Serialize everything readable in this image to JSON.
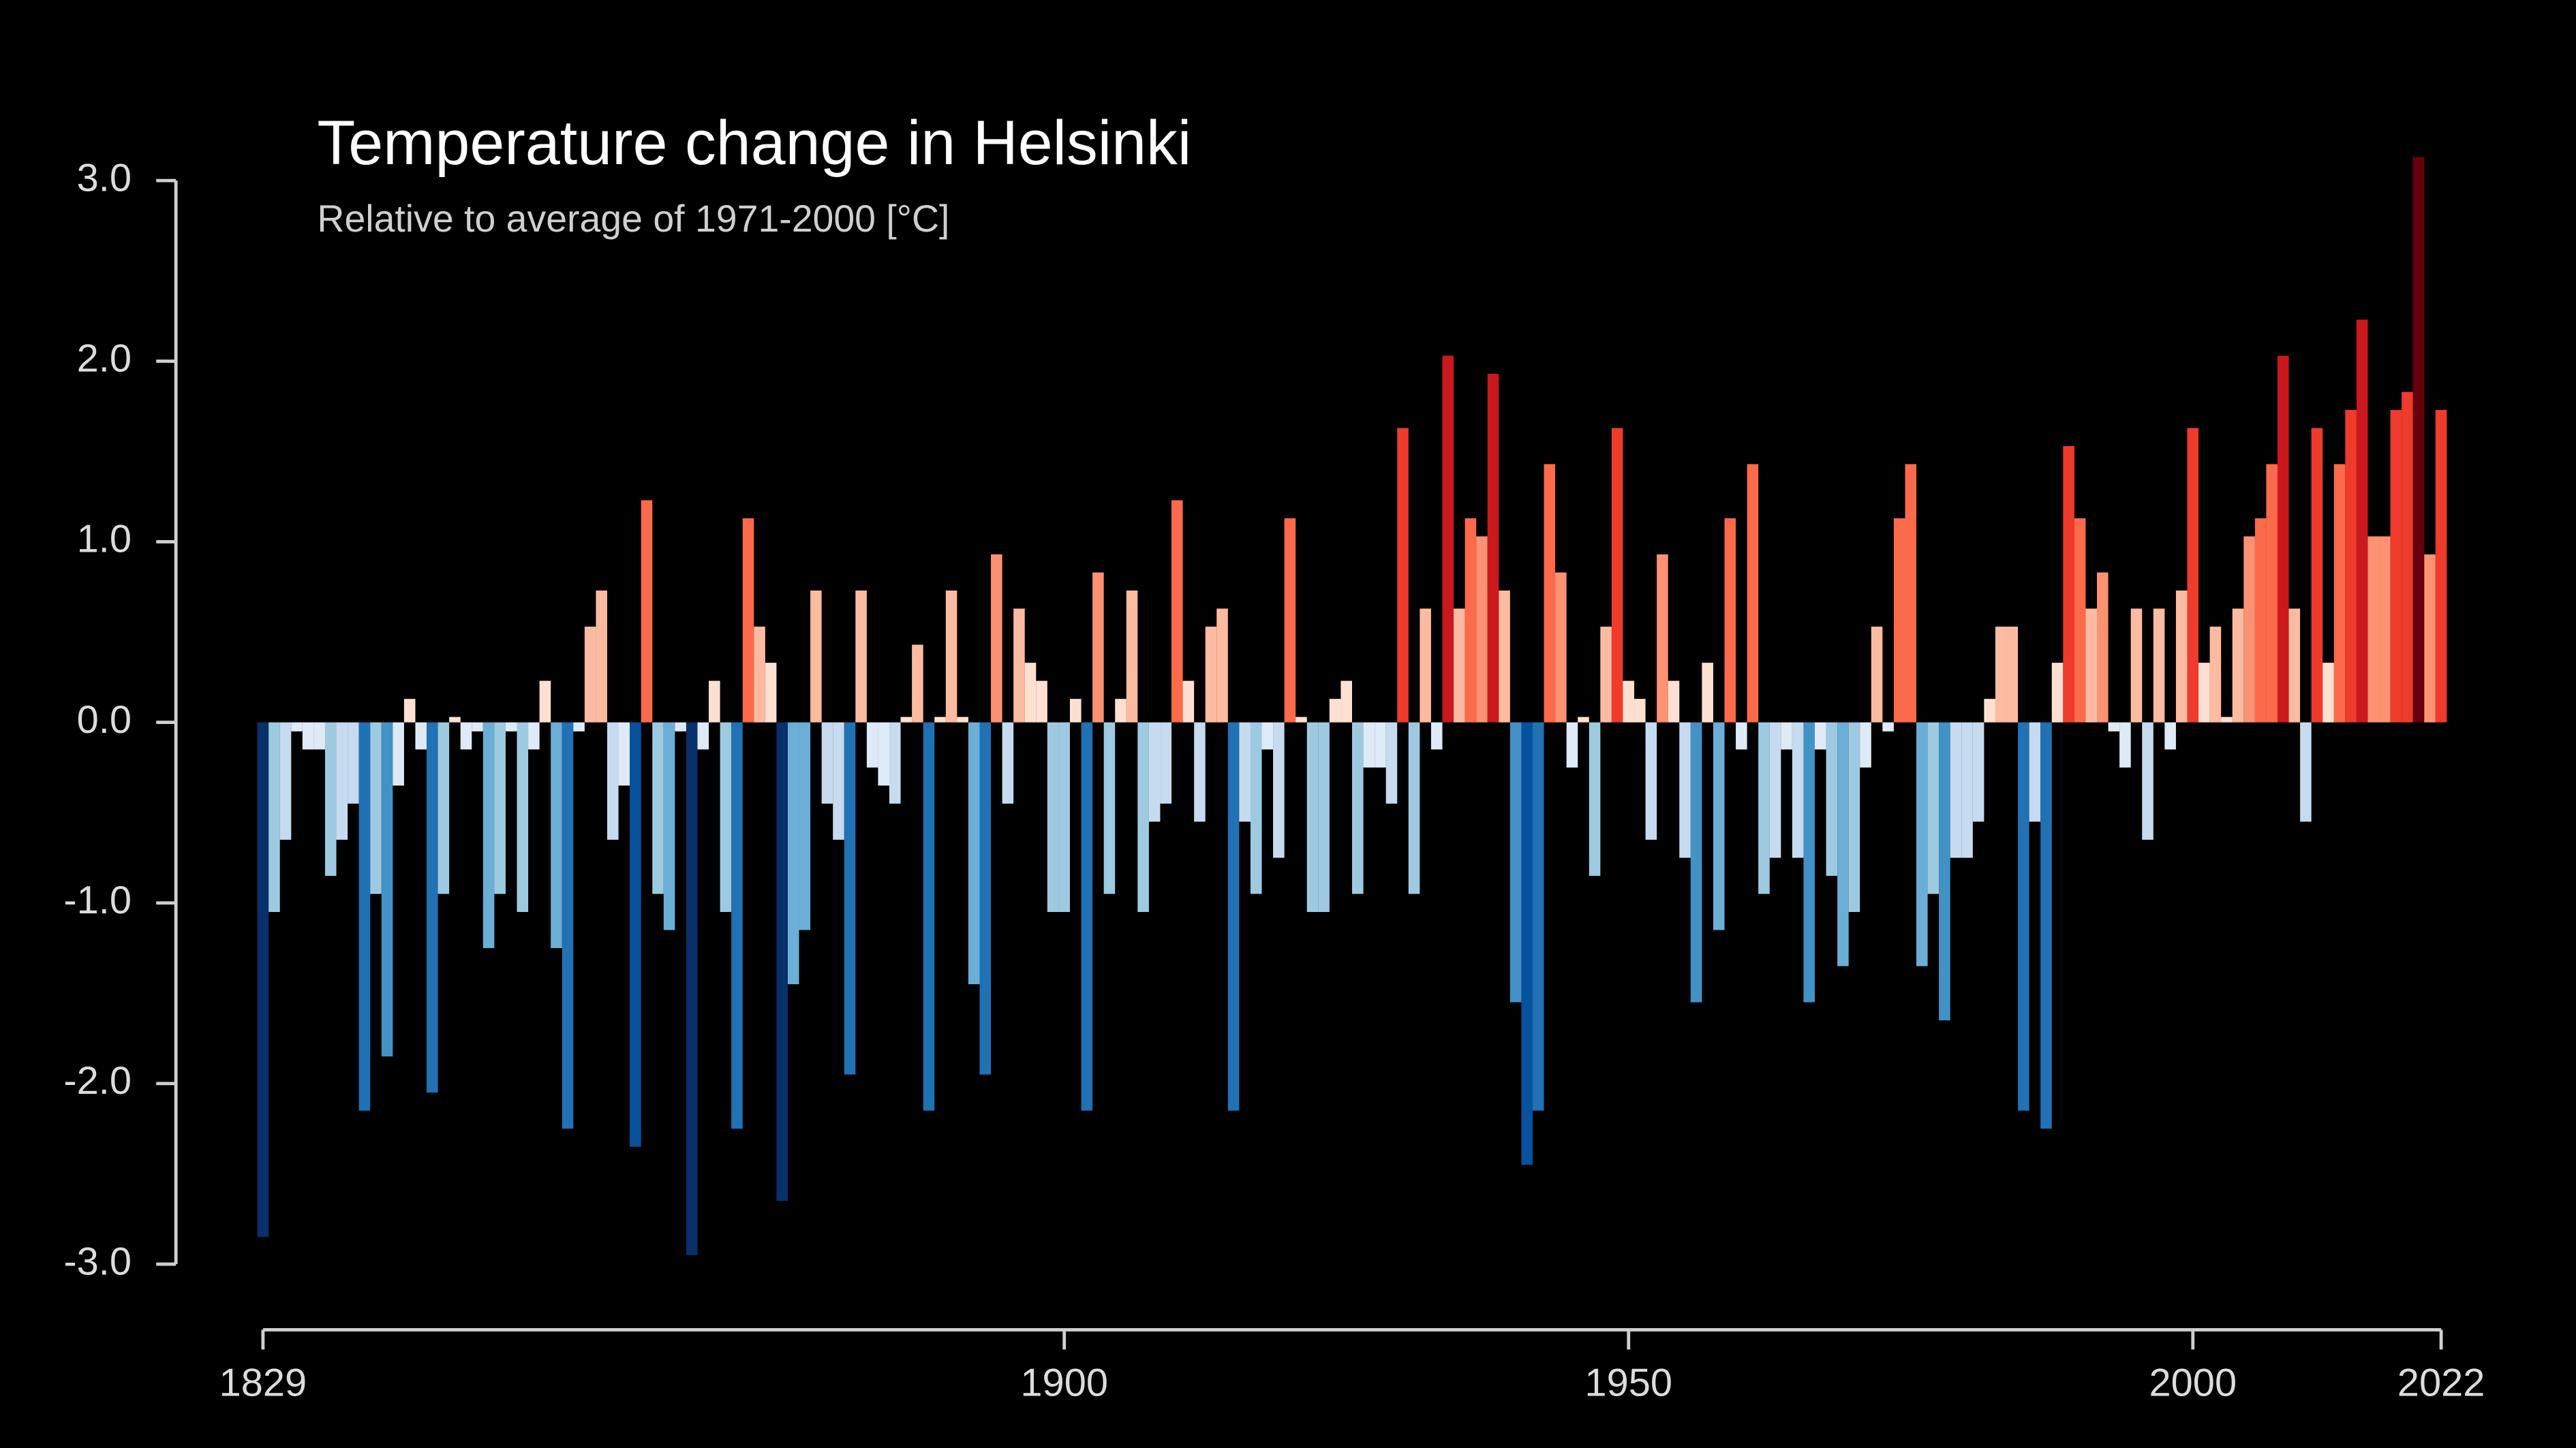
{
  "chart_data": {
    "type": "bar",
    "title": "Temperature change in Helsinki",
    "subtitle": "Relative to average of 1971-2000  [°C]",
    "x": [
      1829,
      1830,
      1831,
      1832,
      1833,
      1834,
      1835,
      1836,
      1837,
      1838,
      1839,
      1840,
      1841,
      1842,
      1843,
      1844,
      1845,
      1846,
      1847,
      1848,
      1849,
      1850,
      1851,
      1852,
      1853,
      1854,
      1855,
      1856,
      1857,
      1858,
      1859,
      1860,
      1861,
      1862,
      1863,
      1864,
      1865,
      1866,
      1867,
      1868,
      1869,
      1870,
      1871,
      1872,
      1873,
      1874,
      1875,
      1876,
      1877,
      1878,
      1879,
      1880,
      1881,
      1882,
      1883,
      1884,
      1885,
      1886,
      1887,
      1888,
      1889,
      1890,
      1891,
      1892,
      1893,
      1894,
      1895,
      1896,
      1897,
      1898,
      1899,
      1900,
      1901,
      1902,
      1903,
      1904,
      1905,
      1906,
      1907,
      1908,
      1909,
      1910,
      1911,
      1912,
      1913,
      1914,
      1915,
      1916,
      1917,
      1918,
      1919,
      1920,
      1921,
      1922,
      1923,
      1924,
      1925,
      1926,
      1927,
      1928,
      1929,
      1930,
      1931,
      1932,
      1933,
      1934,
      1935,
      1936,
      1937,
      1938,
      1939,
      1940,
      1941,
      1942,
      1943,
      1944,
      1945,
      1946,
      1947,
      1948,
      1949,
      1950,
      1951,
      1952,
      1953,
      1954,
      1955,
      1956,
      1957,
      1958,
      1959,
      1960,
      1961,
      1962,
      1963,
      1964,
      1965,
      1966,
      1967,
      1968,
      1969,
      1970,
      1971,
      1972,
      1973,
      1974,
      1975,
      1976,
      1977,
      1978,
      1979,
      1980,
      1981,
      1982,
      1983,
      1984,
      1985,
      1986,
      1987,
      1988,
      1989,
      1990,
      1991,
      1992,
      1993,
      1994,
      1995,
      1996,
      1997,
      1998,
      1999,
      2000,
      2001,
      2002,
      2003,
      2004,
      2005,
      2006,
      2007,
      2008,
      2009,
      2010,
      2011,
      2012,
      2013,
      2014,
      2015,
      2016,
      2017,
      2018,
      2019,
      2020,
      2021,
      2022
    ],
    "values": [
      -2.85,
      -1.05,
      -0.65,
      -0.05,
      -0.15,
      -0.15,
      -0.85,
      -0.65,
      -0.45,
      -2.15,
      -0.95,
      -1.85,
      -0.35,
      0.13,
      -0.15,
      -2.05,
      -0.95,
      0.03,
      -0.15,
      -0.05,
      -1.25,
      -0.95,
      -0.05,
      -1.05,
      -0.15,
      0.23,
      -1.25,
      -2.25,
      -0.05,
      0.53,
      0.73,
      -0.65,
      -0.35,
      -2.35,
      1.23,
      -0.95,
      -1.15,
      -0.05,
      -2.95,
      -0.15,
      0.23,
      -1.05,
      -2.25,
      1.13,
      0.53,
      0.33,
      -2.65,
      -1.45,
      -1.15,
      0.73,
      -0.45,
      -0.65,
      -1.95,
      0.73,
      -0.25,
      -0.35,
      -0.45,
      0.03,
      0.43,
      -2.15,
      0.03,
      0.73,
      0.03,
      -1.45,
      -1.95,
      0.93,
      -0.45,
      0.63,
      0.33,
      0.23,
      -1.05,
      -1.05,
      0.13,
      -2.15,
      0.83,
      -0.95,
      0.13,
      0.73,
      -1.05,
      -0.55,
      -0.45,
      1.23,
      0.23,
      -0.55,
      0.53,
      0.63,
      -2.15,
      -0.55,
      -0.95,
      -0.15,
      -0.75,
      1.13,
      0.03,
      -1.05,
      -1.05,
      0.13,
      0.23,
      -0.95,
      -0.25,
      -0.25,
      -0.45,
      1.63,
      -0.95,
      0.63,
      -0.15,
      2.03,
      0.63,
      1.13,
      1.03,
      1.93,
      0.73,
      -1.55,
      -2.45,
      -2.15,
      1.43,
      0.83,
      -0.25,
      0.03,
      -0.85,
      0.53,
      1.63,
      0.23,
      0.13,
      -0.65,
      0.93,
      0.23,
      -0.75,
      -1.55,
      0.33,
      -1.15,
      1.13,
      -0.15,
      1.43,
      -0.95,
      -0.75,
      -0.15,
      -0.75,
      -1.55,
      -0.15,
      -0.85,
      -1.35,
      -1.05,
      -0.25,
      0.53,
      -0.05,
      1.13,
      1.43,
      -1.35,
      -0.95,
      -1.65,
      -0.75,
      -0.75,
      -0.55,
      0.13,
      0.53,
      0.53,
      -2.15,
      -0.55,
      -2.25,
      0.33,
      1.53,
      1.13,
      0.63,
      0.83,
      -0.05,
      -0.25,
      0.63,
      -0.65,
      0.63,
      -0.15,
      0.73,
      1.63,
      0.33,
      0.53,
      0.03,
      0.63,
      1.03,
      1.13,
      1.43,
      2.03,
      0.63,
      -0.55,
      1.63,
      0.33,
      1.43,
      1.73,
      2.23,
      1.03,
      1.03,
      1.73,
      1.83,
      3.13,
      0.93,
      1.73
    ],
    "colormap": [
      "#08306b",
      "#08519c",
      "#2171b5",
      "#4292c6",
      "#6baed6",
      "#9ecae1",
      "#c6dbef",
      "#deebf7",
      "#fee0d2",
      "#fcbba1",
      "#fc9272",
      "#fb6a4a",
      "#ef3b2c",
      "#cb181d",
      "#a50f15",
      "#67000d"
    ],
    "xlim": [
      1829,
      2022
    ],
    "xticks": [
      1829,
      1900,
      1950,
      2000,
      2022
    ],
    "ylim": [
      -3,
      3
    ],
    "yticks": [
      {
        "value": -3,
        "label": "-3.0"
      },
      {
        "value": -2,
        "label": "-2.0"
      },
      {
        "value": -1,
        "label": "-1.0"
      },
      {
        "value": 0,
        "label": "0.0"
      },
      {
        "value": 1,
        "label": "1.0"
      },
      {
        "value": 2,
        "label": "2.0"
      },
      {
        "value": 3,
        "label": "3.0"
      }
    ]
  }
}
